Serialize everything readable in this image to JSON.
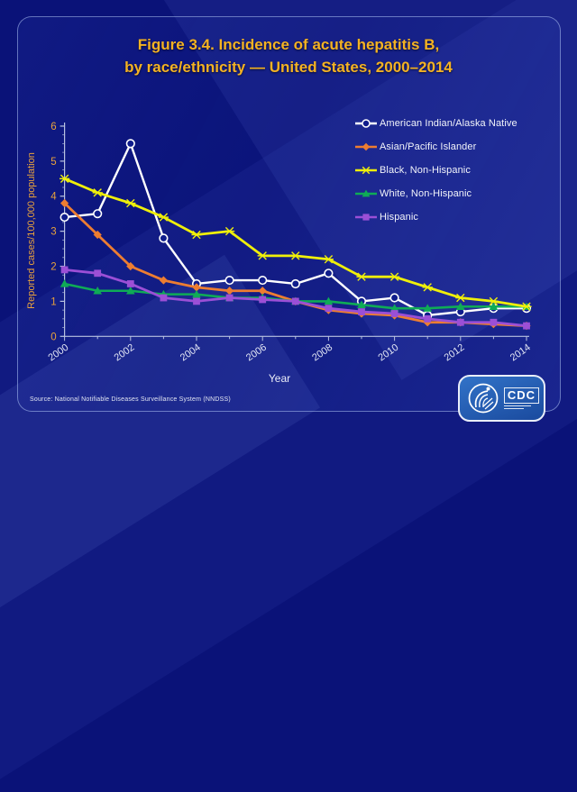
{
  "slide": {
    "title_line1": "Figure 3.4. Incidence of acute hepatitis B,",
    "title_line2": "by race/ethnicity — United States, 2000–2014",
    "title_color": "#F4B223",
    "source_note": "Source: National Notifiable Diseases Surveillance System (NNDSS)",
    "background_color": "#0A1278",
    "frame_border_color": "#ACC0EE"
  },
  "logo": {
    "cdc_text": "CDC"
  },
  "chart_data": {
    "type": "line",
    "title": "Incidence of acute hepatitis B, by race/ethnicity — United States, 2000–2014",
    "xlabel": "Year",
    "ylabel": "Reported cases/100,000 population",
    "ylim": [
      0,
      6
    ],
    "y_ticks": [
      0,
      1,
      2,
      3,
      4,
      5,
      6
    ],
    "x": [
      2000,
      2001,
      2002,
      2003,
      2004,
      2005,
      2006,
      2007,
      2008,
      2009,
      2010,
      2011,
      2012,
      2013,
      2014
    ],
    "x_tick_labels": [
      "2000",
      "2002",
      "2004",
      "2006",
      "2008",
      "2010",
      "2012",
      "2014"
    ],
    "grid": false,
    "legend_position": "upper right",
    "axis_color": "#B8C2E0",
    "y_label_color": "#E8A23C",
    "x_label_color": "#E4E8F6",
    "series": [
      {
        "name": "American Indian/Alaska Native",
        "color": "#FFFFFF",
        "marker": "circle-open",
        "values": [
          3.4,
          3.5,
          5.5,
          2.8,
          1.5,
          1.6,
          1.6,
          1.5,
          1.8,
          1.0,
          1.1,
          0.6,
          0.7,
          0.8,
          0.8
        ]
      },
      {
        "name": "Asian/Pacific Islander",
        "color": "#ED7D31",
        "marker": "diamond",
        "values": [
          3.8,
          2.9,
          2.0,
          1.6,
          1.4,
          1.3,
          1.3,
          1.0,
          0.75,
          0.65,
          0.6,
          0.4,
          0.4,
          0.35,
          0.3
        ]
      },
      {
        "name": "Black, Non-Hispanic",
        "color": "#EFEF0A",
        "marker": "star",
        "values": [
          4.5,
          4.1,
          3.8,
          3.4,
          2.9,
          3.0,
          2.3,
          2.3,
          2.2,
          1.7,
          1.7,
          1.4,
          1.1,
          1.0,
          0.85
        ]
      },
      {
        "name": "White, Non-Hispanic",
        "color": "#0FAB56",
        "marker": "triangle",
        "values": [
          1.5,
          1.3,
          1.3,
          1.2,
          1.2,
          1.1,
          1.1,
          1.0,
          1.0,
          0.9,
          0.8,
          0.8,
          0.85,
          0.85,
          0.85
        ]
      },
      {
        "name": "Hispanic",
        "color": "#9B4FD6",
        "marker": "square",
        "values": [
          1.9,
          1.8,
          1.5,
          1.1,
          1.0,
          1.1,
          1.05,
          1.0,
          0.8,
          0.7,
          0.65,
          0.5,
          0.4,
          0.4,
          0.3
        ]
      }
    ]
  }
}
